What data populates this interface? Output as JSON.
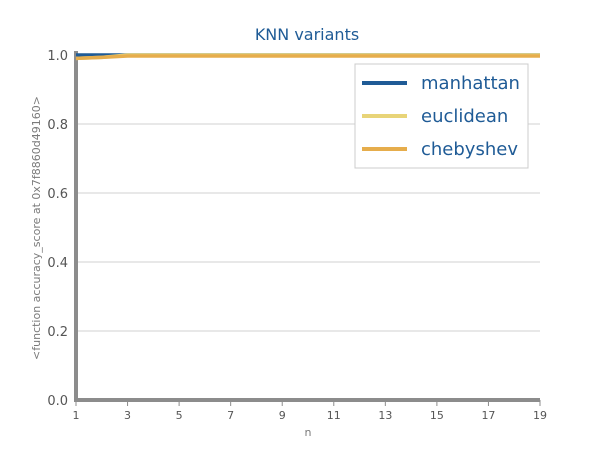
{
  "chart_data": {
    "type": "line",
    "title": "KNN variants",
    "xlabel": "n",
    "ylabel": "<function accuracy_score at 0x7f8860d49160>",
    "xlim": [
      1,
      19
    ],
    "ylim": [
      0.0,
      1.0
    ],
    "x_ticks": [
      1,
      3,
      5,
      7,
      9,
      11,
      13,
      15,
      17,
      19
    ],
    "y_ticks": [
      "0.0",
      "0.2",
      "0.4",
      "0.6",
      "0.8",
      "1.0"
    ],
    "grid": "horizontal",
    "legend_position": "top-right",
    "x": [
      1,
      2,
      3,
      4,
      5,
      6,
      7,
      8,
      9,
      10,
      11,
      12,
      13,
      14,
      15,
      16,
      17,
      18,
      19
    ],
    "series": [
      {
        "name": "manhattan",
        "color": "#1f5b96",
        "values": [
          1.0,
          1.0,
          1.0,
          1.0,
          1.0,
          1.0,
          1.0,
          1.0,
          1.0,
          1.0,
          1.0,
          1.0,
          1.0,
          1.0,
          1.0,
          1.0,
          1.0,
          1.0,
          1.0
        ]
      },
      {
        "name": "euclidean",
        "color": "#e8d478",
        "values": [
          0.99,
          0.993,
          1.0,
          1.0,
          1.0,
          1.0,
          1.0,
          1.0,
          1.0,
          1.0,
          1.0,
          1.0,
          1.0,
          1.0,
          1.0,
          1.0,
          1.0,
          1.0,
          1.0
        ]
      },
      {
        "name": "chebyshev",
        "color": "#e6ad4c",
        "values": [
          0.99,
          0.993,
          0.997,
          0.997,
          0.997,
          0.997,
          0.997,
          0.997,
          0.997,
          0.997,
          0.997,
          0.997,
          0.997,
          0.997,
          0.997,
          0.997,
          0.997,
          0.997,
          0.997
        ]
      }
    ]
  }
}
